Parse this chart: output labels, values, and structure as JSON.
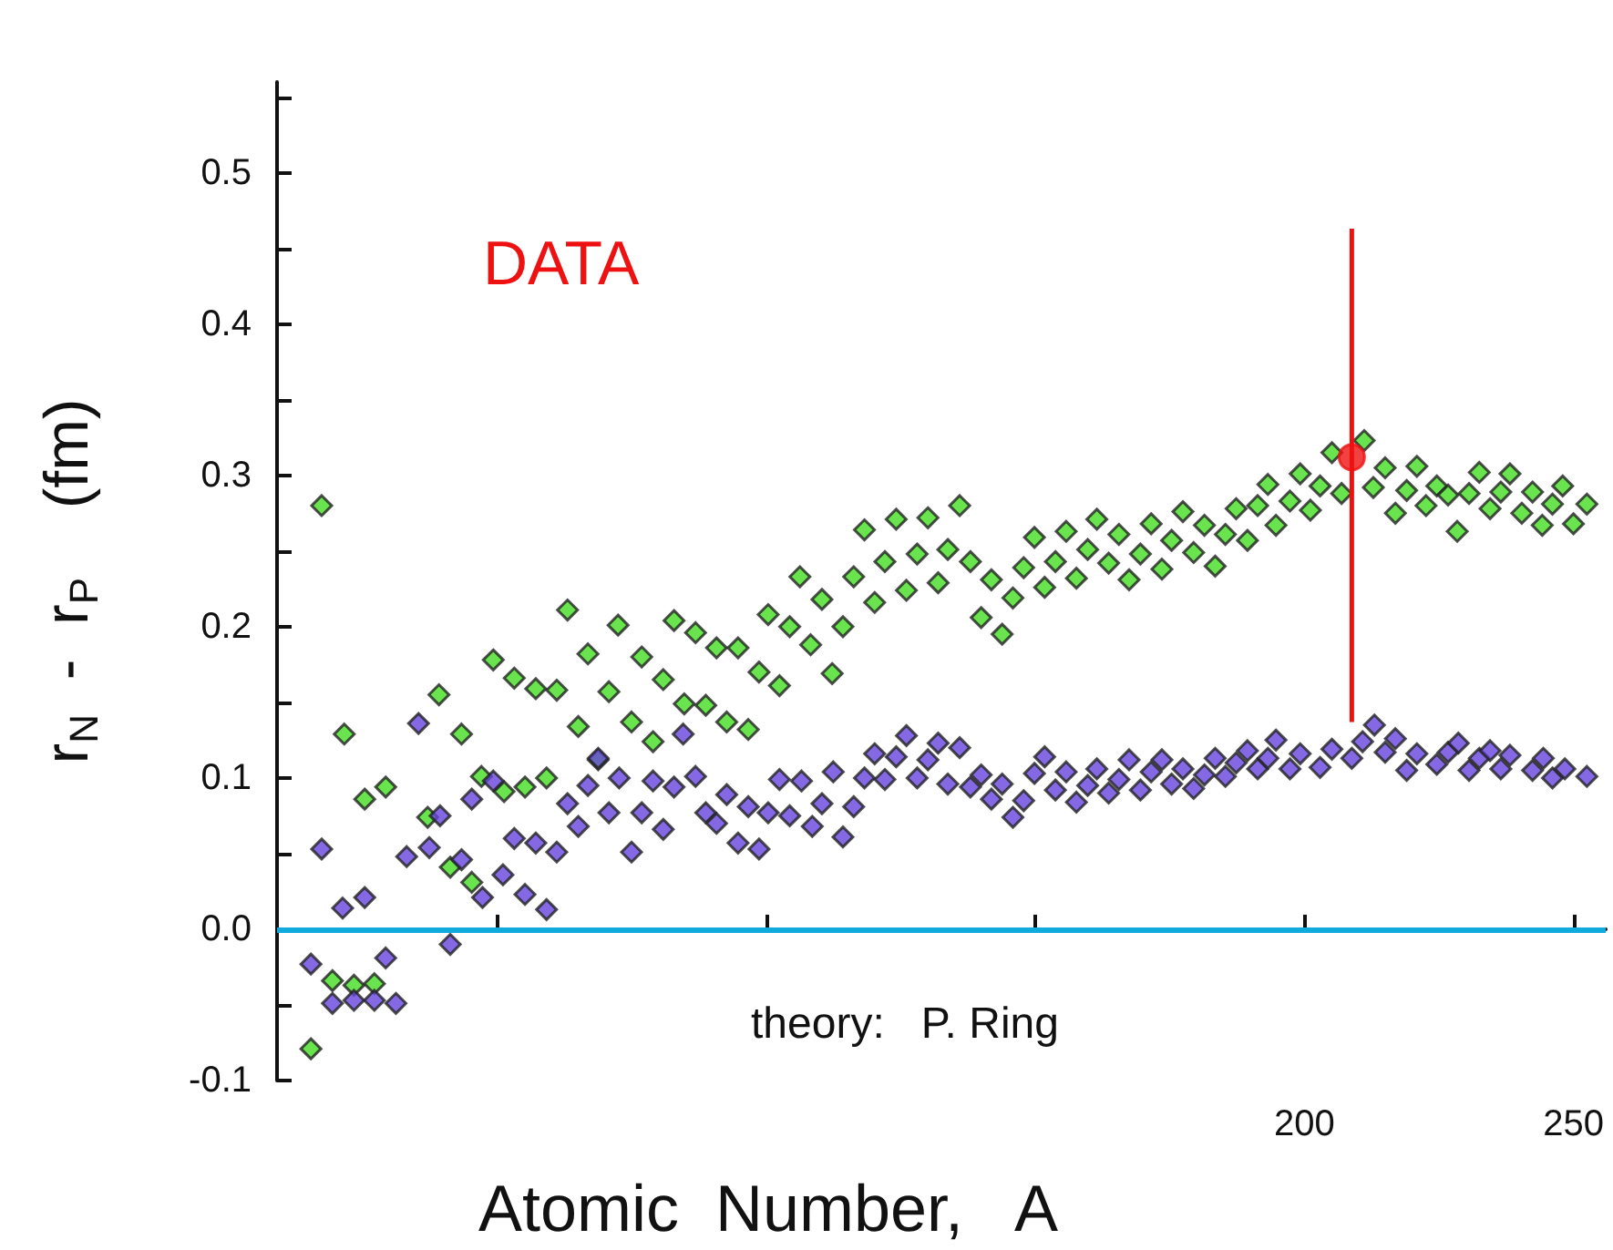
{
  "chart_data": {
    "type": "scatter",
    "xlabel": "Atomic  Number,   A",
    "ylabel": "r$_{N}$  -  r$_{P}$    (fm)",
    "annotations": [
      "DATA",
      "theory:   P. Ring"
    ],
    "xlim": [
      9,
      256
    ],
    "ylim": [
      -0.1,
      0.56
    ],
    "xticks": [
      {
        "value": 50,
        "label": null
      },
      {
        "value": 100,
        "label": null
      },
      {
        "value": 150,
        "label": null
      },
      200,
      250
    ],
    "yticks": [
      -0.1,
      {
        "value": -0.05,
        "label": null
      },
      {
        "value": 0,
        "label": "0.0"
      },
      {
        "value": 0.05,
        "label": null
      },
      0.1,
      {
        "value": 0.15,
        "label": null
      },
      0.2,
      {
        "value": 0.25,
        "label": null
      },
      0.3,
      {
        "value": 0.35,
        "label": null
      },
      0.4,
      {
        "value": 0.45,
        "label": null
      },
      0.5,
      {
        "value": 0.55,
        "label": null
      }
    ],
    "grid": false,
    "marker": "diamond",
    "ref_lines": [
      {
        "axis": "y",
        "value": 0,
        "color": "#11aadd"
      }
    ],
    "series": [
      {
        "color": "#44dd22",
        "x": [
          15.3,
          17.3,
          19.3,
          21.5,
          23.3,
          25.3,
          27.1,
          29.2,
          37,
          39.1,
          41.2,
          43.3,
          45.2,
          47,
          49.2,
          51.2,
          53.1,
          55.1,
          57.1,
          59.1,
          61,
          63,
          65,
          66.8,
          68.7,
          70.7,
          72.4,
          74.9,
          76.8,
          78.9,
          80.8,
          82.8,
          84.7,
          86.8,
          88.7,
          90.7,
          92.6,
          94.7,
          96.6,
          98.6,
          100.3,
          102.4,
          104.3,
          106.2,
          108.2,
          110.3,
          112.2,
          114.2,
          116.2,
          118.2,
          120.1,
          122,
          124.1,
          126,
          128,
          130,
          131.9,
          133.7,
          135.9,
          137.9,
          139.9,
          141.8,
          143.8,
          145.8,
          147.8,
          149.8,
          151.7,
          153.7,
          155.7,
          157.6,
          159.7,
          161.4,
          163.6,
          165.5,
          167.4,
          169.5,
          171.5,
          173.5,
          175.3,
          177.4,
          179.4,
          181.4,
          183.4,
          185.3,
          187.3,
          189.4,
          191.3,
          193.2,
          194.7,
          197.3,
          199.2,
          201.1,
          202.9,
          205.1,
          206.9,
          211.1,
          212.8,
          215,
          216.9,
          219,
          220.9,
          222.6,
          224.6,
          226.7,
          228.4,
          230.6,
          232.5,
          234.5,
          236.5,
          238.2,
          240.4,
          242.4,
          244.2,
          246.1,
          248,
          250,
          252.5
        ],
        "values": [
          -0.079,
          0.28,
          -0.034,
          0.129,
          -0.037,
          0.086,
          -0.036,
          0.094,
          0.074,
          0.155,
          0.041,
          0.129,
          0.031,
          0.101,
          0.178,
          0.091,
          0.166,
          0.094,
          0.159,
          0.1,
          0.158,
          0.211,
          0.134,
          0.182,
          0.112,
          0.157,
          0.201,
          0.137,
          0.18,
          0.124,
          0.165,
          0.204,
          0.149,
          0.196,
          0.148,
          0.186,
          0.137,
          0.186,
          0.132,
          0.17,
          0.208,
          0.161,
          0.2,
          0.233,
          0.188,
          0.218,
          0.169,
          0.2,
          0.233,
          0.264,
          0.216,
          0.243,
          0.271,
          0.224,
          0.248,
          0.272,
          0.229,
          0.251,
          0.28,
          0.243,
          0.206,
          0.231,
          0.195,
          0.219,
          0.239,
          0.259,
          0.226,
          0.243,
          0.263,
          0.232,
          0.251,
          0.271,
          0.242,
          0.261,
          0.231,
          0.248,
          0.268,
          0.238,
          0.257,
          0.276,
          0.249,
          0.267,
          0.24,
          0.261,
          0.278,
          0.257,
          0.28,
          0.294,
          0.267,
          0.283,
          0.301,
          0.277,
          0.293,
          0.315,
          0.288,
          0.323,
          0.292,
          0.305,
          0.275,
          0.29,
          0.306,
          0.28,
          0.293,
          0.287,
          0.263,
          0.288,
          0.302,
          0.278,
          0.289,
          0.301,
          0.275,
          0.289,
          0.267,
          0.281,
          0.293,
          0.268,
          0.281
        ]
      },
      {
        "color": "#6644dd",
        "x": [
          15.3,
          17.3,
          19.3,
          21.2,
          23.3,
          25.3,
          27.1,
          29.2,
          31.1,
          33.1,
          35.3,
          37.3,
          39.3,
          41.2,
          43.3,
          45.2,
          47.2,
          49.2,
          51,
          53.1,
          55.1,
          57.1,
          59.1,
          61,
          63,
          65,
          66.8,
          68.7,
          70.7,
          72.6,
          74.9,
          76.8,
          78.9,
          80.8,
          82.8,
          84.5,
          86.8,
          88.7,
          90.7,
          92.6,
          94.7,
          96.6,
          98.6,
          100.3,
          102.4,
          104.3,
          106.5,
          108.5,
          110.3,
          112.4,
          114.2,
          116.2,
          118.2,
          120.1,
          122,
          124.1,
          126,
          128,
          130,
          131.9,
          133.7,
          135.9,
          137.9,
          139.9,
          141.8,
          143.8,
          145.8,
          147.8,
          149.8,
          151.7,
          153.7,
          155.7,
          157.6,
          159.7,
          161.4,
          163.6,
          165.5,
          167.4,
          169.5,
          171.5,
          173.5,
          175.3,
          177.4,
          179.4,
          181.4,
          183.4,
          185.3,
          187.3,
          189.4,
          191.3,
          193.2,
          194.7,
          197.3,
          199.2,
          202.9,
          205.1,
          208.8,
          210.8,
          213,
          215,
          216.9,
          219,
          220.9,
          224.6,
          226.7,
          228.6,
          230.6,
          232.5,
          234.5,
          236.5,
          238.2,
          242.4,
          244.4,
          246.1,
          248.4,
          252.5
        ],
        "values": [
          -0.023,
          0.053,
          -0.049,
          0.014,
          -0.047,
          0.021,
          -0.047,
          -0.019,
          -0.049,
          0.048,
          0.136,
          0.054,
          0.075,
          -0.01,
          0.046,
          0.086,
          0.021,
          0.098,
          0.036,
          0.06,
          0.023,
          0.057,
          0.013,
          0.051,
          0.083,
          0.068,
          0.095,
          0.113,
          0.077,
          0.1,
          0.051,
          0.077,
          0.098,
          0.066,
          0.094,
          0.129,
          0.101,
          0.077,
          0.07,
          0.089,
          0.057,
          0.081,
          0.053,
          0.077,
          0.099,
          0.075,
          0.098,
          0.068,
          0.083,
          0.104,
          0.061,
          0.081,
          0.1,
          0.116,
          0.099,
          0.114,
          0.128,
          0.1,
          0.112,
          0.123,
          0.096,
          0.12,
          0.094,
          0.102,
          0.086,
          0.096,
          0.074,
          0.085,
          0.103,
          0.114,
          0.092,
          0.104,
          0.084,
          0.095,
          0.106,
          0.09,
          0.099,
          0.112,
          0.092,
          0.104,
          0.112,
          0.096,
          0.106,
          0.093,
          0.102,
          0.113,
          0.101,
          0.11,
          0.118,
          0.106,
          0.113,
          0.125,
          0.106,
          0.116,
          0.107,
          0.119,
          0.113,
          0.124,
          0.135,
          0.117,
          0.126,
          0.105,
          0.116,
          0.109,
          0.117,
          0.123,
          0.105,
          0.113,
          0.118,
          0.106,
          0.115,
          0.105,
          0.113,
          0.1,
          0.106,
          0.101
        ]
      },
      {
        "color": "#ee1111",
        "marker": "circle",
        "x": [
          208.8
        ],
        "values": [
          0.312
        ],
        "errors": [
          [
            0.137,
            0.463
          ]
        ]
      }
    ]
  }
}
